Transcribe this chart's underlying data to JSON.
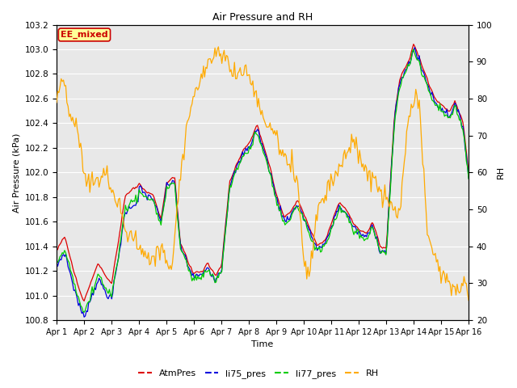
{
  "title": "Air Pressure and RH",
  "xlabel": "Time",
  "ylabel_left": "Air Pressure (kPa)",
  "ylabel_right": "RH",
  "ylim_left": [
    100.8,
    103.2
  ],
  "ylim_right": [
    20,
    100
  ],
  "yticks_left": [
    100.8,
    101.0,
    101.2,
    101.4,
    101.6,
    101.8,
    102.0,
    102.2,
    102.4,
    102.6,
    102.8,
    103.0,
    103.2
  ],
  "yticks_right": [
    20,
    30,
    40,
    50,
    60,
    70,
    80,
    90,
    100
  ],
  "xtick_labels": [
    "Apr 1",
    "Apr 2",
    "Apr 3",
    "Apr 4",
    "Apr 5",
    "Apr 6",
    "Apr 7",
    "Apr 8",
    "Apr 9",
    "Apr 10",
    "Apr 11",
    "Apr 12",
    "Apr 13",
    "Apr 14",
    "Apr 15",
    "Apr 16"
  ],
  "annotation_text": "EE_mixed",
  "annotation_color": "#cc0000",
  "annotation_bg": "#ffff99",
  "fig_bg": "#ffffff",
  "plot_bg": "#e8e8e8",
  "grid_color": "#ffffff",
  "colors": {
    "AtmPres": "#dd0000",
    "li75_pres": "#0000dd",
    "li77_pres": "#00cc00",
    "RH": "#ffaa00"
  },
  "legend_labels": [
    "AtmPres",
    "li75_pres",
    "li77_pres",
    "RH"
  ]
}
